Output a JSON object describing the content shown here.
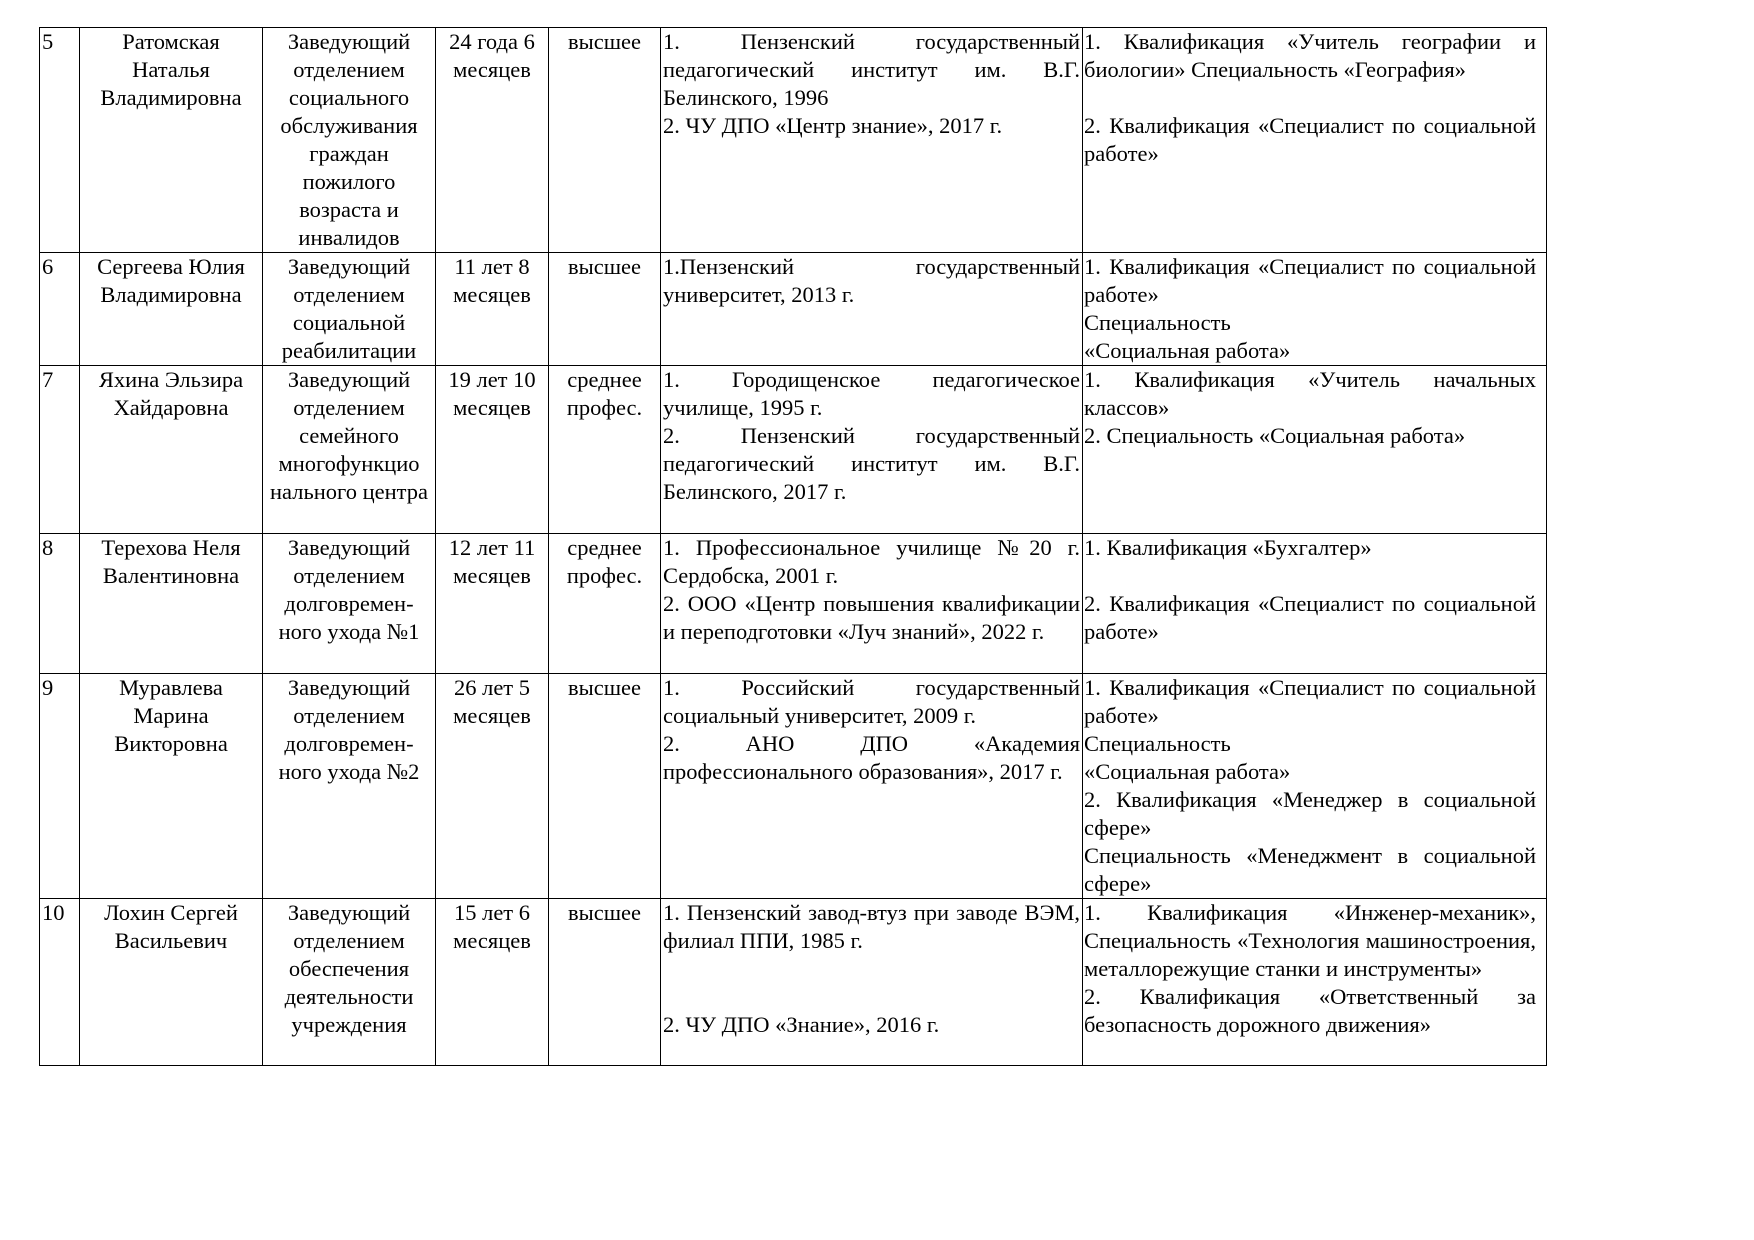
{
  "rows": [
    {
      "num": "5",
      "name": [
        "Ратомская Наталья Владимировна"
      ],
      "position": [
        "Заведующий отделением социального обслуживания граждан пожилого возраста и инвалидов"
      ],
      "experience": [
        "24 года 6 месяцев"
      ],
      "education_level": [
        "высшее"
      ],
      "education": [
        "1. Пензенский государственный педагогический институт им. В.Г. Белинского, 1996",
        "2. ЧУ ДПО «Центр знание», 2017 г."
      ],
      "qualification": [
        "1. Квалификация «Учитель географии и биологии» Специальность «География»",
        "",
        "2. Квалификация «Специалист по социальной работе»"
      ]
    },
    {
      "num": "6",
      "name": [
        "Сергеева Юлия Владимировна"
      ],
      "position": [
        "Заведующий отделением социальной реабилитации"
      ],
      "experience": [
        "11 лет 8 месяцев"
      ],
      "education_level": [
        "высшее"
      ],
      "education": [
        "1.Пензенский государственный университет, 2013 г."
      ],
      "qualification": [
        " 1. Квалификация «Специалист по социальной работе»",
        " Специальность",
        " «Социальная работа»"
      ]
    },
    {
      "num": "7",
      "name": [
        "Яхина Эльзира Хайдаровна"
      ],
      "position": [
        "Заведующий отделением семейного многофункцио нального центра"
      ],
      "experience": [
        "19 лет 10 месяцев"
      ],
      "education_level": [
        "среднее профес."
      ],
      "education": [
        "1. Городищенское педагогическое училище, 1995 г.",
        "2. Пензенский государственный педагогический институт им. В.Г. Белинского, 2017 г."
      ],
      "qualification": [
        "1. Квалификация «Учитель начальных классов»",
        "2. Специальность «Социальная работа»"
      ]
    },
    {
      "num": "8",
      "name": [
        "Терехова Неля Валентиновна"
      ],
      "position": [
        "Заведующий отделением долговремен- ного ухода №1"
      ],
      "experience": [
        "12 лет 11 месяцев"
      ],
      "education_level": [
        "среднее профес."
      ],
      "education": [
        "1. Профессиональное училище №20 г. Сердобска, 2001 г.",
        "2. ООО «Центр повышения квалификации и переподготовки «Луч знаний», 2022 г."
      ],
      "qualification": [
        "1. Квалификация «Бухгалтер»",
        "",
        "2. Квалификация «Специалист по социальной работе»"
      ]
    },
    {
      "num": "9",
      "name": [
        "Муравлева Марина Викторовна"
      ],
      "position": [
        "Заведующий отделением долговремен- ного ухода №2"
      ],
      "experience": [
        "26 лет 5 месяцев"
      ],
      "education_level": [
        "высшее"
      ],
      "education": [
        "1. Российский государственный социальный университет, 2009 г.",
        "2. АНО ДПО «Академия профессионального образования», 2017 г."
      ],
      "qualification": [
        "1. Квалификация «Специалист по социальной работе»",
        "Специальность",
        "«Социальная работа»",
        "2. Квалификация «Менеджер в социальной сфере»",
        "Специальность «Менеджмент в социальной сфере»"
      ]
    },
    {
      "num": "10",
      "name": [
        "Лохин Сергей Васильевич"
      ],
      "position": [
        "Заведующий отделением обеспечения деятельности учреждения"
      ],
      "experience": [
        "15 лет 6 месяцев"
      ],
      "education_level": [
        "высшее"
      ],
      "education": [
        "1. Пензенский завод-втуз при заводе ВЭМ, филиал ППИ, 1985 г.",
        "",
        "",
        "2. ЧУ ДПО «Знание», 2016 г."
      ],
      "qualification": [
        "1. Квалификация «Инженер-механик», Специальность «Технология машиностроения, металлорежущие станки и инструменты»",
        "2. Квалификация «Ответственный за безопасность дорожного движения»"
      ]
    }
  ]
}
